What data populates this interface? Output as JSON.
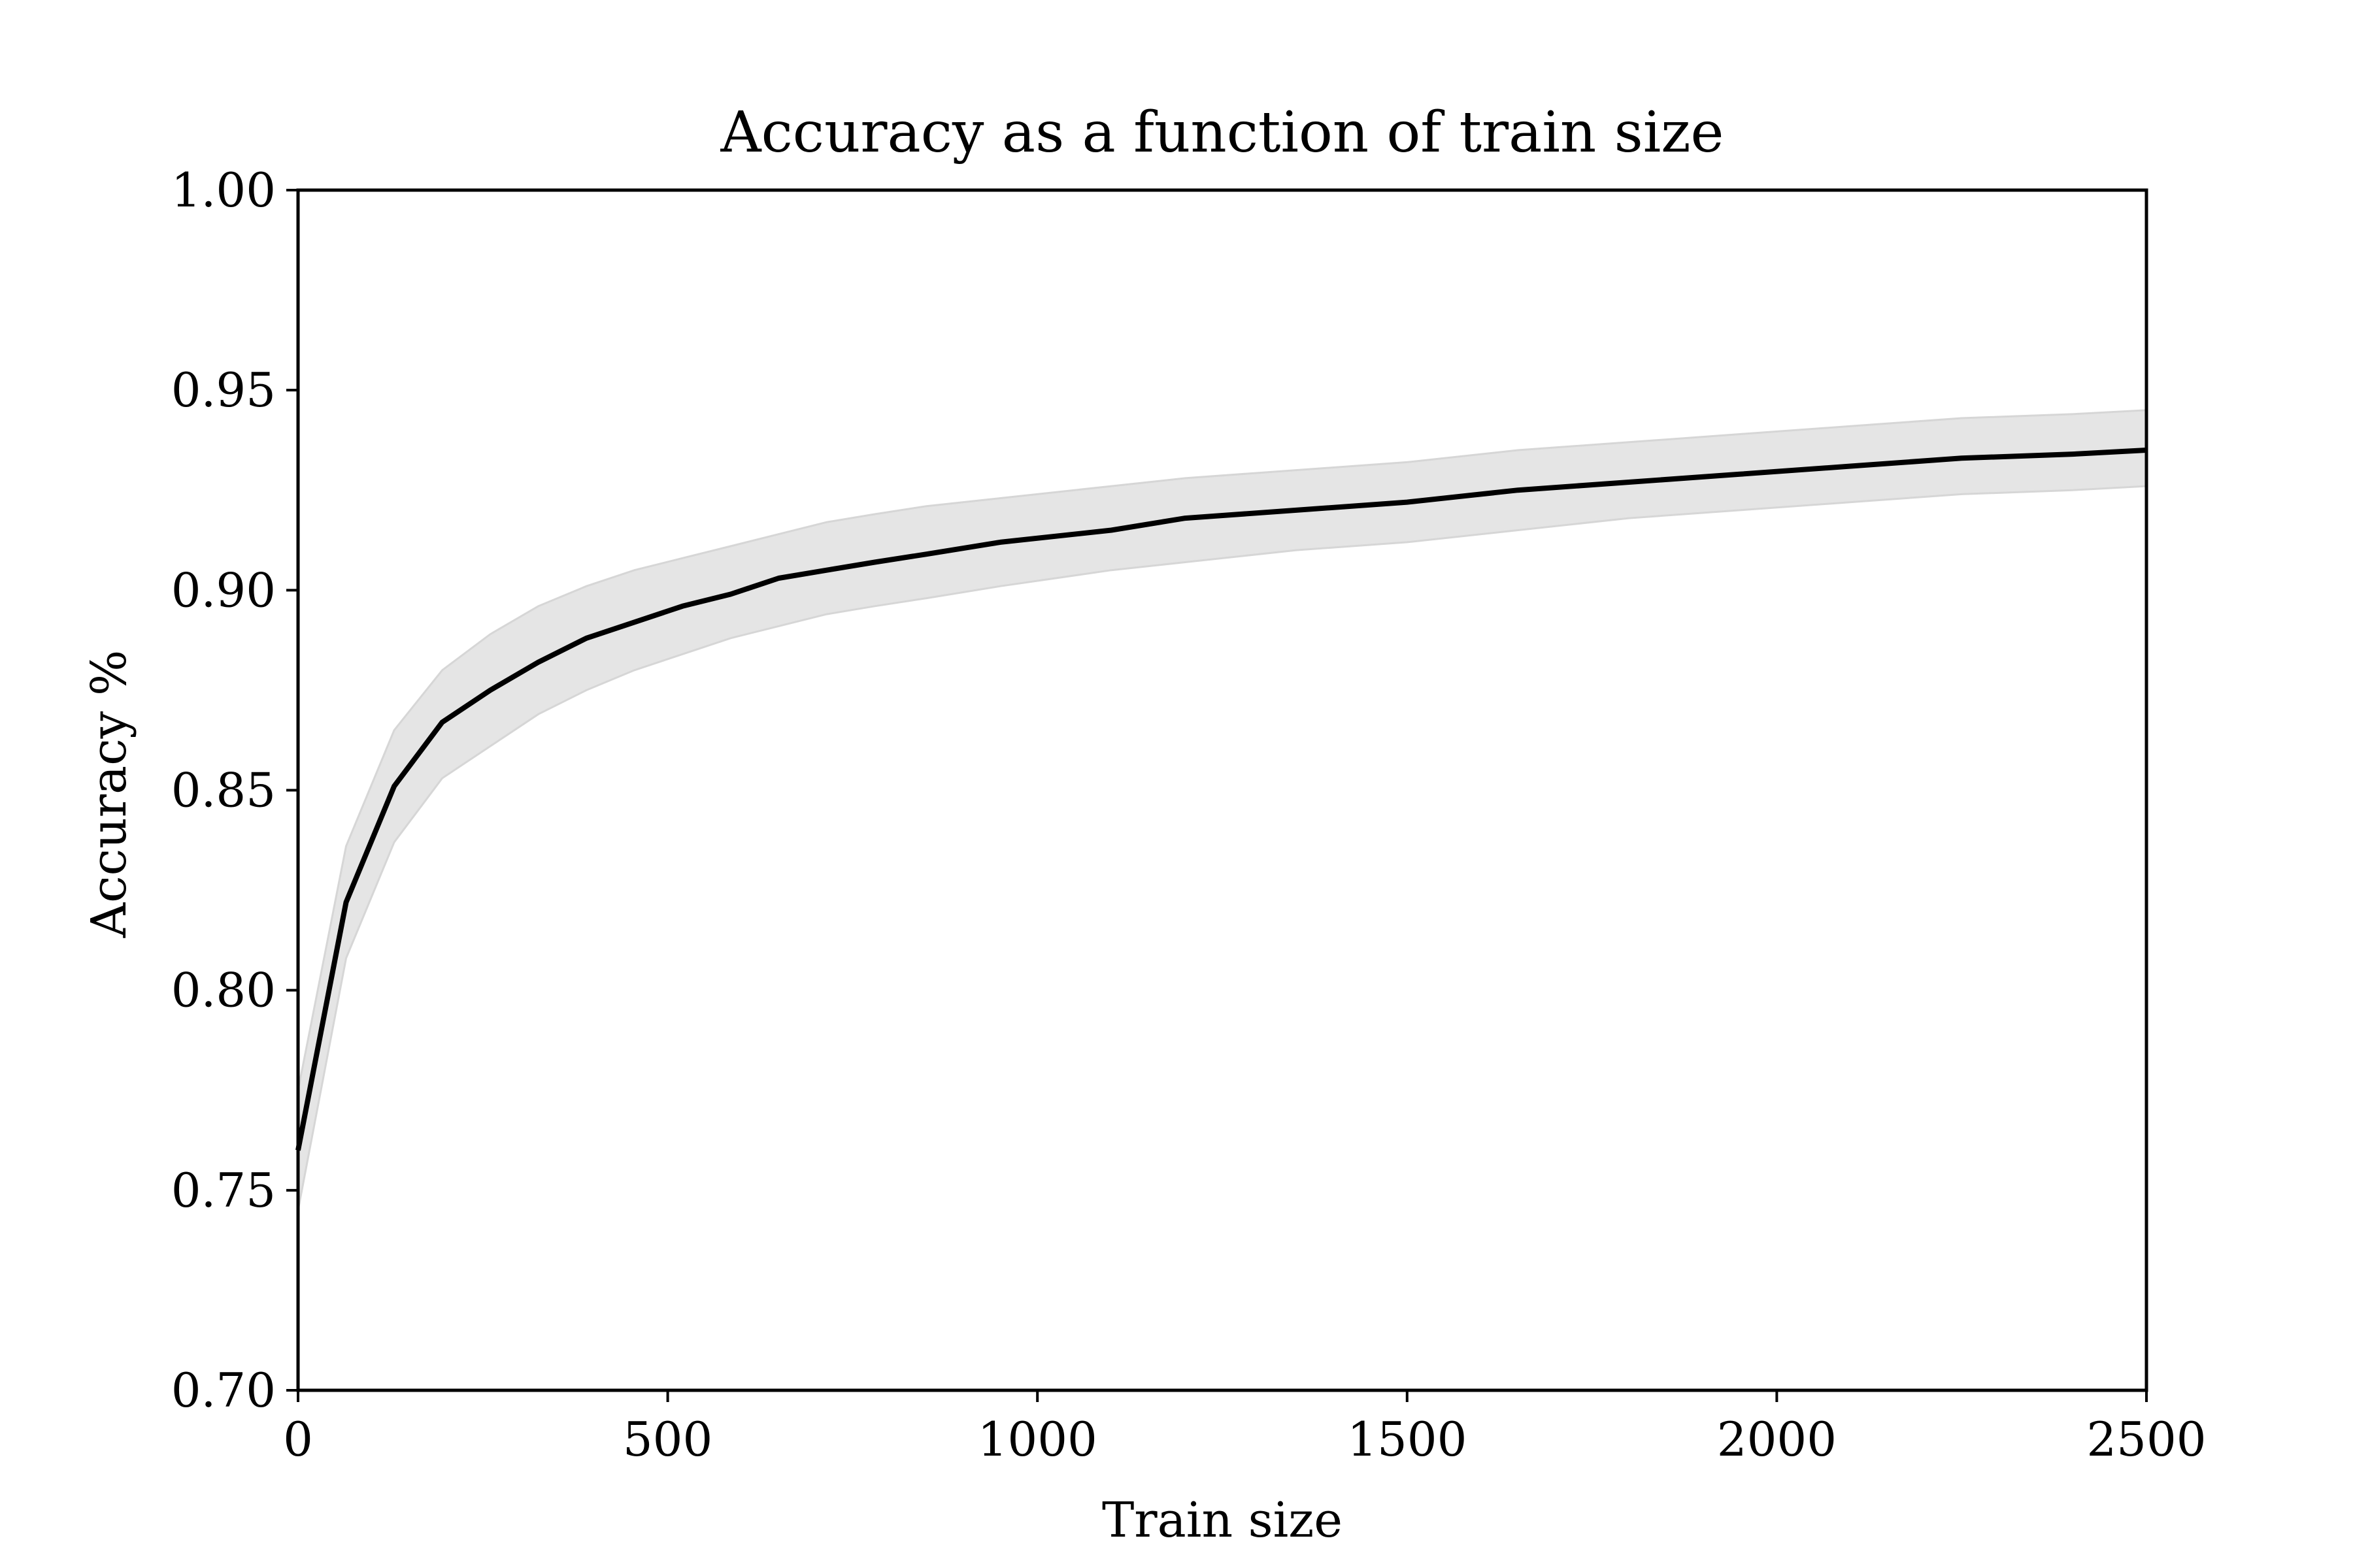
{
  "chart_data": {
    "type": "line",
    "title": "Accuracy as a function of train size",
    "xlabel": "Train size",
    "ylabel": "Accuracy %",
    "xlim": [
      0,
      2500
    ],
    "ylim": [
      0.7,
      1.0
    ],
    "xticks": [
      0,
      500,
      1000,
      1500,
      2000,
      2500
    ],
    "yticks": [
      0.7,
      0.75,
      0.8,
      0.85,
      0.9,
      0.95,
      1.0
    ],
    "xtick_labels": [
      "0",
      "500",
      "1000",
      "1500",
      "2000",
      "2500"
    ],
    "ytick_labels": [
      "0.70",
      "0.75",
      "0.80",
      "0.85",
      "0.90",
      "0.95",
      "1.00"
    ],
    "grid": false,
    "x": [
      0,
      65,
      130,
      195,
      260,
      325,
      390,
      455,
      520,
      585,
      650,
      715,
      780,
      850,
      950,
      1100,
      1200,
      1350,
      1500,
      1650,
      1800,
      1950,
      2100,
      2250,
      2400,
      2500
    ],
    "series": [
      {
        "values": [
          0.76,
          0.822,
          0.851,
          0.867,
          0.875,
          0.882,
          0.888,
          0.892,
          0.896,
          0.899,
          0.903,
          0.905,
          0.907,
          0.909,
          0.912,
          0.915,
          0.918,
          0.92,
          0.922,
          0.925,
          0.927,
          0.929,
          0.931,
          0.933,
          0.934,
          0.935
        ],
        "lower": [
          0.745,
          0.808,
          0.837,
          0.853,
          0.861,
          0.869,
          0.875,
          0.88,
          0.884,
          0.888,
          0.891,
          0.894,
          0.896,
          0.898,
          0.901,
          0.905,
          0.907,
          0.91,
          0.912,
          0.915,
          0.918,
          0.92,
          0.922,
          0.924,
          0.925,
          0.926
        ],
        "upper": [
          0.775,
          0.836,
          0.865,
          0.88,
          0.889,
          0.896,
          0.901,
          0.905,
          0.908,
          0.911,
          0.914,
          0.917,
          0.919,
          0.921,
          0.923,
          0.926,
          0.928,
          0.93,
          0.932,
          0.935,
          0.937,
          0.939,
          0.941,
          0.943,
          0.944,
          0.945
        ],
        "color": "#000000",
        "band_color": "#e5e5e5",
        "band_edge_color": "#d6d6d6"
      }
    ]
  }
}
